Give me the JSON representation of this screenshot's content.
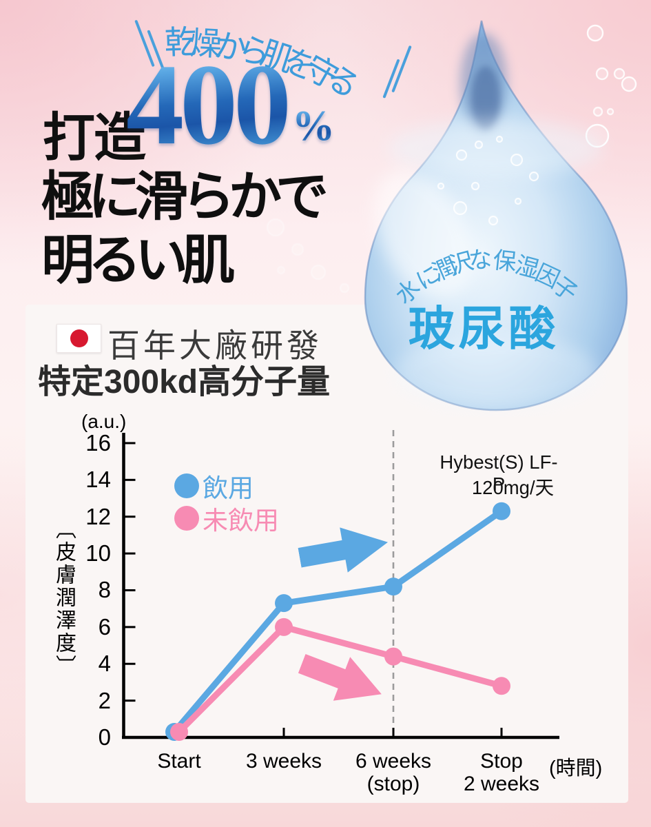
{
  "hero": {
    "arc_headline": "乾燥から肌を守る",
    "title_prefix": "打造",
    "title_number": "400",
    "title_percent": "%",
    "title_line2": "極に滑らかで",
    "title_line3": "明るい肌"
  },
  "drop": {
    "arc_text": "水に潤沢な保湿因子",
    "label": "玻尿酸"
  },
  "research": {
    "heading": "百年大廠研發",
    "subheading": "特定300kd高分子量"
  },
  "chart_data": {
    "type": "line",
    "unit_label": "(a.u.)",
    "y_axis_title": "〔皮膚潤澤度〕",
    "x_axis_label": "(時間)",
    "categories": [
      [
        "Start"
      ],
      [
        "3 weeks"
      ],
      [
        "6 weeks",
        "(stop)"
      ],
      [
        "Stop",
        "2 weeks"
      ]
    ],
    "series": [
      {
        "name": "飲用",
        "color": "#5BA8E2",
        "values": [
          0.3,
          7.3,
          8.2,
          12.3
        ]
      },
      {
        "name": "未飲用",
        "color": "#F78BB3",
        "values": [
          0.3,
          6.0,
          4.4,
          2.8
        ]
      }
    ],
    "ylim": [
      0,
      16
    ],
    "ytick_step": 2,
    "grid": false,
    "legend_position": "upper-left",
    "dashed_line_category_index": 2,
    "annotation": {
      "line1": "Hybest(S) LF-P",
      "line2": "120mg/天"
    },
    "arrows": [
      {
        "series": "飲用",
        "direction": "right-up"
      },
      {
        "series": "未飲用",
        "direction": "right-down"
      }
    ]
  }
}
